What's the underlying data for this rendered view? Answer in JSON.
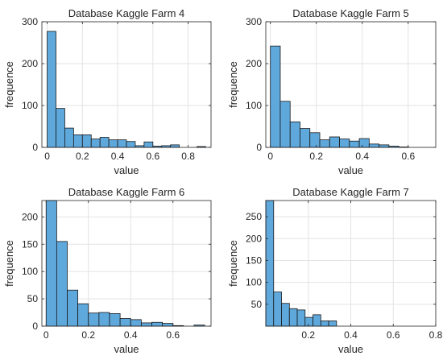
{
  "figure": {
    "bar_color": "#5fa8dc",
    "edge_color": "#1a1a1a",
    "grid_color": "#e3e3e3",
    "axis_color": "#262626"
  },
  "chart_data": [
    {
      "type": "bar",
      "title": "Database Kaggle Farm 4",
      "xlabel": "value",
      "ylabel": "frequence",
      "grid": true,
      "xlim": [
        -0.03,
        0.93
      ],
      "ylim": [
        0,
        300
      ],
      "xticks": [
        0,
        0.2,
        0.4,
        0.6,
        0.8
      ],
      "xtick_labels": [
        "0",
        "0.2",
        "0.4",
        "0.6",
        "0.8"
      ],
      "yticks": [
        0,
        100,
        200,
        300
      ],
      "ytick_labels": [
        "0",
        "100",
        "200",
        "300"
      ],
      "bin_start": 0,
      "bin_width": 0.05,
      "values": [
        277,
        93,
        46,
        30,
        30,
        20,
        24,
        18,
        18,
        14,
        4,
        13,
        3,
        4,
        6,
        0,
        0,
        2
      ]
    },
    {
      "type": "bar",
      "title": "Database Kaggle Farm 5",
      "xlabel": "value",
      "ylabel": "frequence",
      "grid": true,
      "xlim": [
        -0.02,
        0.72
      ],
      "ylim": [
        0,
        300
      ],
      "xticks": [
        0,
        0.2,
        0.4,
        0.6
      ],
      "xtick_labels": [
        "0",
        "0.2",
        "0.4",
        "0.6"
      ],
      "yticks": [
        0,
        100,
        200,
        300
      ],
      "ytick_labels": [
        "0",
        "100",
        "200",
        "300"
      ],
      "bin_start": 0,
      "bin_width": 0.043,
      "values": [
        242,
        110,
        61,
        45,
        35,
        18,
        25,
        20,
        15,
        21,
        8,
        6,
        3,
        1
      ]
    },
    {
      "type": "bar",
      "title": "Database Kaggle Farm 6",
      "xlabel": "value",
      "ylabel": "frequence",
      "grid": true,
      "xlim": [
        -0.02,
        0.78
      ],
      "ylim": [
        0,
        230
      ],
      "xticks": [
        0,
        0.2,
        0.4,
        0.6
      ],
      "xtick_labels": [
        "0",
        "0.2",
        "0.4",
        "0.6"
      ],
      "yticks": [
        0,
        50,
        100,
        150,
        200
      ],
      "ytick_labels": [
        "0",
        "50",
        "100",
        "150",
        "200"
      ],
      "bin_start": 0,
      "bin_width": 0.05,
      "values": [
        230,
        155,
        66,
        41,
        24,
        25,
        23,
        14,
        12,
        6,
        7,
        5,
        1,
        0,
        2
      ]
    },
    {
      "type": "bar",
      "title": "Database Kaggle Farm 7",
      "xlabel": "value",
      "ylabel": "frequence",
      "grid": true,
      "xlim": [
        0,
        0.8
      ],
      "ylim": [
        0,
        287
      ],
      "xticks": [
        0.2,
        0.4,
        0.6,
        0.8
      ],
      "xtick_labels": [
        "0.2",
        "0.4",
        "0.6",
        "0.8"
      ],
      "yticks": [
        50,
        100,
        150,
        200,
        250
      ],
      "ytick_labels": [
        "50",
        "100",
        "150",
        "200",
        "250"
      ],
      "bin_start": 0,
      "bin_width": 0.037,
      "values": [
        287,
        78,
        52,
        40,
        37,
        20,
        26,
        12,
        12
      ]
    }
  ]
}
